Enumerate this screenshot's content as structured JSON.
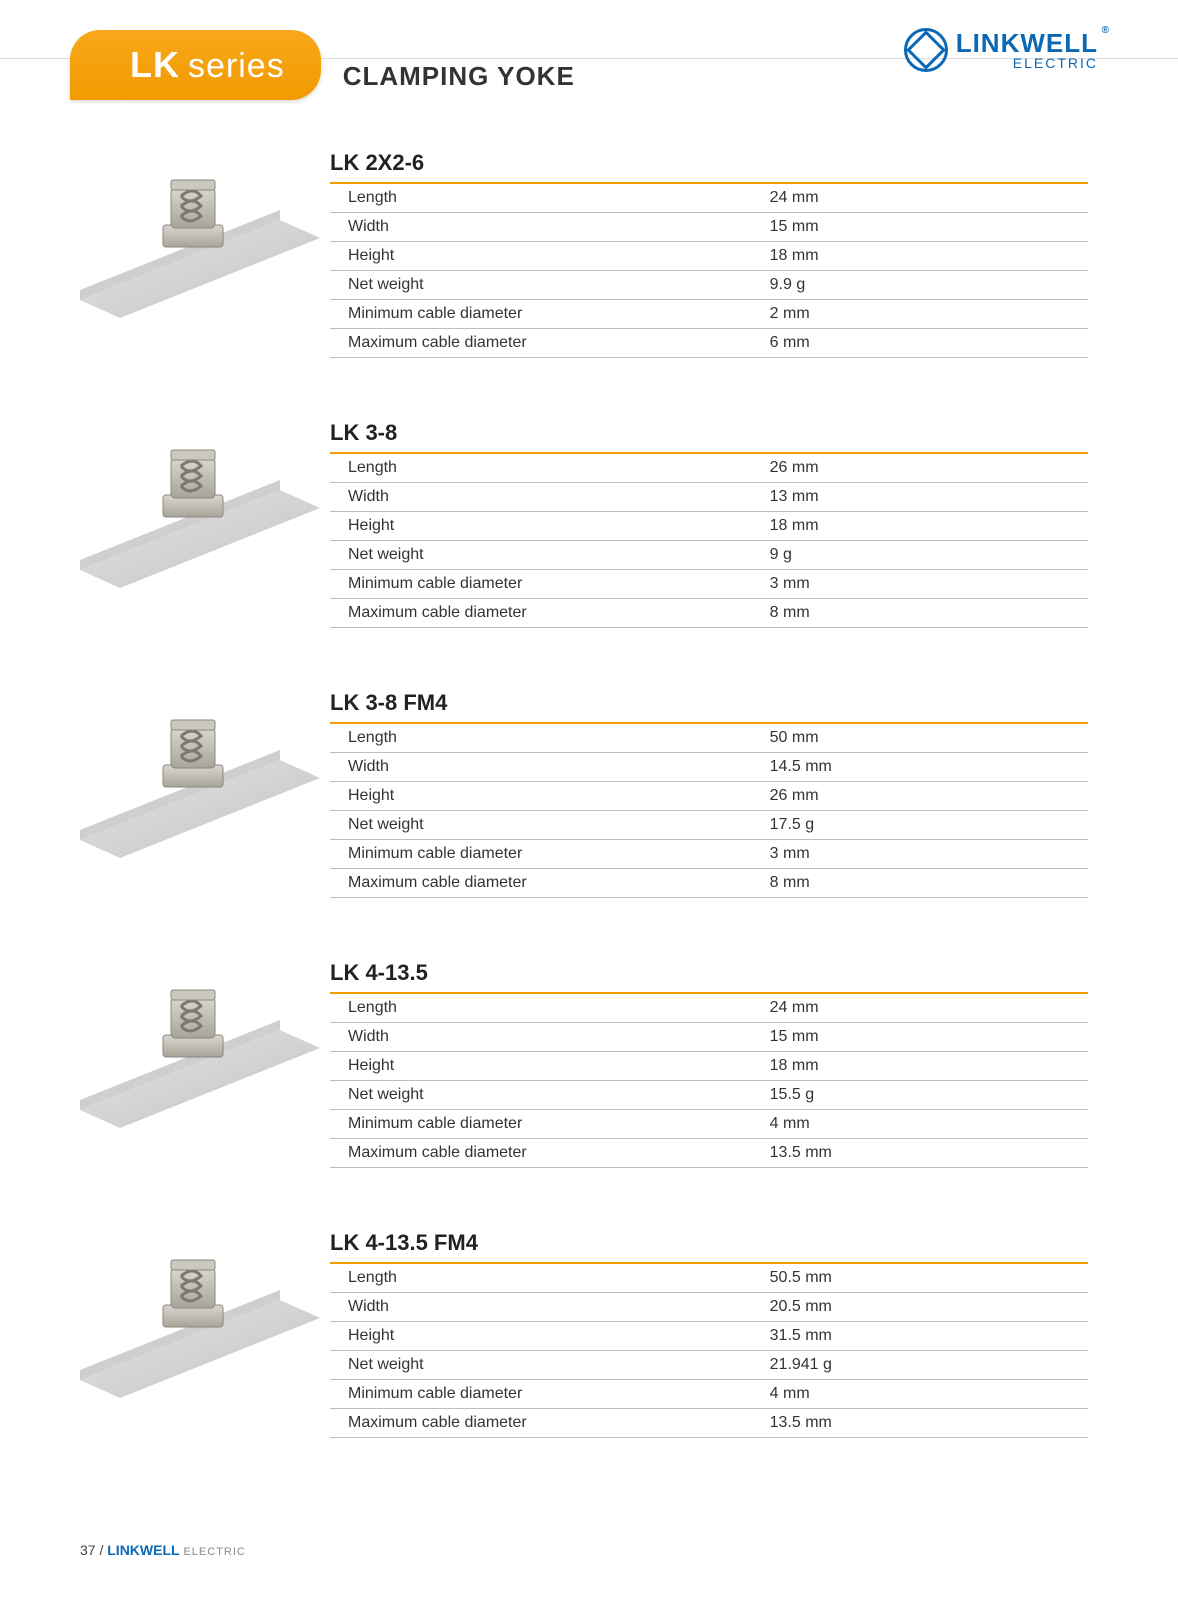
{
  "colors": {
    "accent": "#f39a00",
    "brand": "#0a68b4",
    "rule": "#bdbdbd",
    "text": "#222222",
    "page_bg": "#ffffff"
  },
  "header": {
    "series_prefix": "LK",
    "series_suffix": "series",
    "category_title": "CLAMPING YOKE",
    "brand_name": "LINKWELL",
    "brand_sub": "ELECTRIC",
    "registered": "®"
  },
  "spec_labels": [
    "Length",
    "Width",
    "Height",
    "Net weight",
    "Minimum cable diameter",
    "Maximum cable diameter"
  ],
  "products": [
    {
      "model": "LK 2X2-6",
      "values": [
        "24 mm",
        "15 mm",
        "18 mm",
        "9.9 g",
        "2 mm",
        "6 mm"
      ]
    },
    {
      "model": "LK 3-8",
      "values": [
        "26 mm",
        "13 mm",
        "18 mm",
        "9 g",
        "3 mm",
        "8 mm"
      ]
    },
    {
      "model": "LK 3-8 FM4",
      "values": [
        "50 mm",
        "14.5 mm",
        "26 mm",
        "17.5 g",
        "3 mm",
        "8 mm"
      ]
    },
    {
      "model": "LK 4-13.5",
      "values": [
        "24 mm",
        "15 mm",
        "18 mm",
        "15.5 g",
        "4 mm",
        "13.5 mm"
      ]
    },
    {
      "model": "LK 4-13.5 FM4",
      "values": [
        "50.5 mm",
        "20.5 mm",
        "31.5 mm",
        "21.941 g",
        "4 mm",
        "13.5 mm"
      ]
    }
  ],
  "footer": {
    "page_no": "37",
    "sep": " / ",
    "brand": "LINKWELL",
    "sub": "ELECTRIC"
  }
}
